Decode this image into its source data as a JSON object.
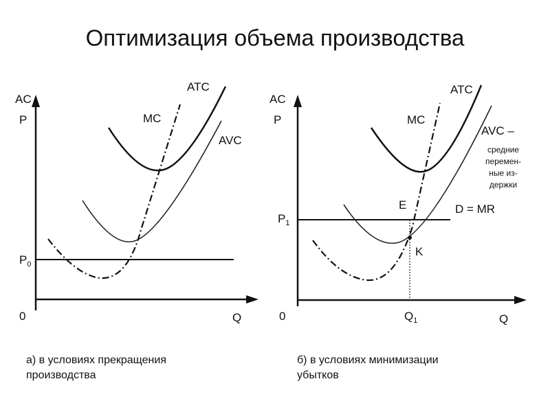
{
  "title": "Оптимизация объема производства",
  "left_diagram": {
    "axis_y_labels": [
      "AC",
      "P"
    ],
    "origin": "0",
    "axis_x_label": "Q",
    "price_label": {
      "label": "P",
      "subscript": "0"
    },
    "curves": {
      "mc": "MC",
      "atc": "ATC",
      "avc": "AVC"
    }
  },
  "right_diagram": {
    "axis_y_labels": [
      "AC",
      "P"
    ],
    "origin": "0",
    "axis_x_label": "Q",
    "price_label": {
      "label": "P",
      "subscript": "1"
    },
    "quantity_label": {
      "label": "Q",
      "subscript": "1"
    },
    "curves": {
      "mc": "MC",
      "atc": "ATC",
      "avc": "AVC –",
      "demand": "D = MR"
    },
    "avc_note": [
      "средние",
      "перемен-",
      "ные из-",
      "держки"
    ],
    "points": {
      "e": "E",
      "k": "K"
    }
  },
  "captions": [
    "а) в условиях прекращения производства",
    "б) в условиях минимизации убытков"
  ]
}
